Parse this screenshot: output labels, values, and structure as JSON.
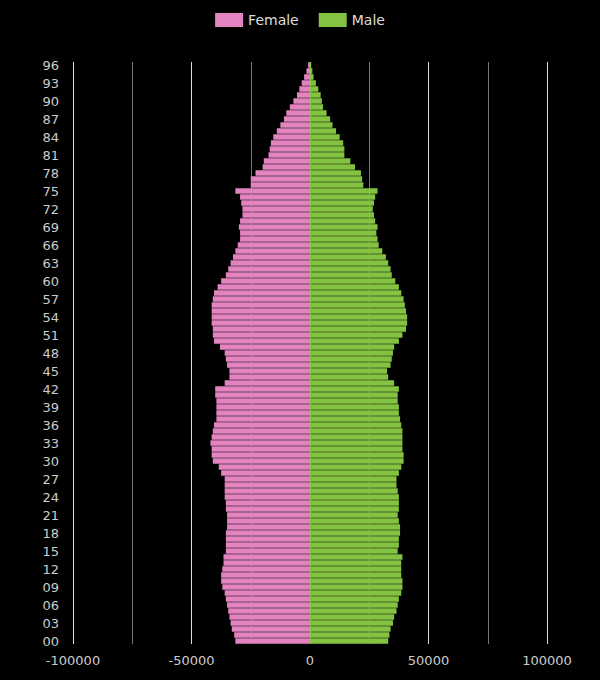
{
  "chart_data": {
    "type": "bar",
    "orientation": "horizontal",
    "legend": "top",
    "grid": true,
    "categories": [
      "00",
      null,
      null,
      "03",
      null,
      null,
      "06",
      null,
      null,
      "09",
      null,
      null,
      "12",
      null,
      null,
      "15",
      null,
      null,
      "18",
      null,
      null,
      "21",
      null,
      null,
      "24",
      null,
      null,
      "27",
      null,
      null,
      "30",
      null,
      null,
      "33",
      null,
      null,
      "36",
      null,
      null,
      "39",
      null,
      null,
      "42",
      null,
      null,
      "45",
      null,
      null,
      "48",
      null,
      null,
      "51",
      null,
      null,
      "54",
      null,
      null,
      "57",
      null,
      null,
      "60",
      null,
      null,
      "63",
      null,
      null,
      "66",
      null,
      null,
      "69",
      null,
      null,
      "72",
      null,
      null,
      "75",
      null,
      null,
      "78",
      null,
      null,
      "81",
      null,
      null,
      "84",
      null,
      null,
      "87",
      null,
      null,
      "90",
      null,
      null,
      "93",
      null,
      null,
      "96"
    ],
    "xlim": [
      -100000,
      100000
    ],
    "xticks": [
      -100000,
      -50000,
      0,
      50000,
      100000
    ],
    "series": [
      {
        "name": "Female",
        "color": "#e383bf",
        "values": [
          -31500,
          -32000,
          -33000,
          -33500,
          -34000,
          -34500,
          -35000,
          -35500,
          -36000,
          -37000,
          -37500,
          -37500,
          -37000,
          -36500,
          -36500,
          -35500,
          -35500,
          -35500,
          -35500,
          -35000,
          -35000,
          -35000,
          -35500,
          -35500,
          -36000,
          -36000,
          -36000,
          -36000,
          -37500,
          -38500,
          -41000,
          -41500,
          -41500,
          -42000,
          -41500,
          -41000,
          -40500,
          -39500,
          -39500,
          -39500,
          -39500,
          -40000,
          -40000,
          -36000,
          -34000,
          -34000,
          -35000,
          -35500,
          -36000,
          -38000,
          -40500,
          -41000,
          -41000,
          -41500,
          -41500,
          -41500,
          -41500,
          -41000,
          -40500,
          -39000,
          -37500,
          -35500,
          -34500,
          -33500,
          -32500,
          -31500,
          -30500,
          -29500,
          -29500,
          -30000,
          -29500,
          -28500,
          -28500,
          -29000,
          -29500,
          -31500,
          -25000,
          -25000,
          -23000,
          -20000,
          -19500,
          -17500,
          -17000,
          -16500,
          -15500,
          -14000,
          -12500,
          -11000,
          -10000,
          -8500,
          -7000,
          -5500,
          -4500,
          -3500,
          -2500,
          -1500,
          -800
        ]
      },
      {
        "name": "Male",
        "color": "#84c341",
        "values": [
          33000,
          33500,
          34000,
          35000,
          35500,
          36500,
          37000,
          37500,
          38500,
          39000,
          39000,
          38500,
          38500,
          38500,
          39000,
          37000,
          37500,
          37500,
          38000,
          38000,
          37500,
          37000,
          37500,
          37500,
          37500,
          37000,
          36500,
          36500,
          37500,
          38500,
          39500,
          39500,
          39000,
          39000,
          39000,
          39000,
          38500,
          38000,
          37500,
          37500,
          37000,
          37000,
          37500,
          35500,
          33000,
          32500,
          34000,
          34500,
          35000,
          35500,
          37500,
          39000,
          40500,
          41000,
          41000,
          40500,
          40000,
          39500,
          38500,
          37500,
          36000,
          34500,
          34000,
          33000,
          32000,
          30500,
          29000,
          28500,
          28000,
          28500,
          27500,
          27000,
          26500,
          27000,
          27500,
          28500,
          22500,
          22000,
          21500,
          19000,
          17000,
          14500,
          14500,
          14000,
          12500,
          11000,
          9500,
          8500,
          7000,
          5500,
          5000,
          4500,
          3500,
          2500,
          1500,
          1000,
          500
        ]
      }
    ]
  }
}
